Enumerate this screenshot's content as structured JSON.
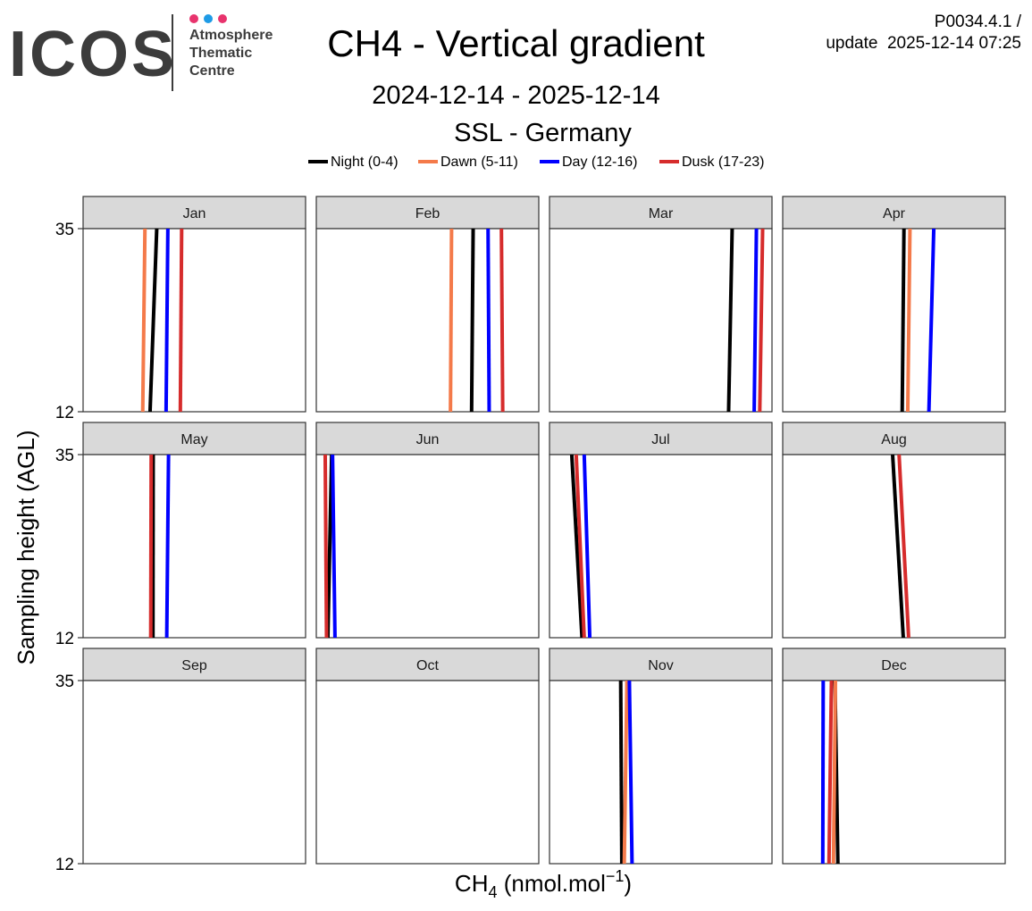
{
  "logo": {
    "wordmark": "ICOS",
    "lines": [
      "Atmosphere",
      "Thematic",
      "Centre"
    ],
    "dot_colors": [
      "#e8336d",
      "#1e9be6",
      "#e8336d"
    ]
  },
  "header": {
    "title": "CH4 - Vertical gradient",
    "date_range": "2024-12-14 - 2025-12-14",
    "station": "SSL - Germany",
    "product_code": "P0034.4.1 /",
    "update_text": "update  2025-12-14 07:25"
  },
  "chart_data": {
    "type": "line",
    "title": "CH4 - Vertical gradient",
    "xlabel": "CH4 (nmol.mol-1)",
    "xlabel_main": "CH",
    "xlabel_sub": "4",
    "xlabel_unit": " (nmol.mol",
    "xlabel_sup": "−1",
    "xlabel_close": ")",
    "ylabel": "Sampling height (AGL)",
    "y_ticks": [
      12,
      35
    ],
    "ylim": [
      12,
      35
    ],
    "x_ticks_shown": false,
    "grid": false,
    "legend_position": "top",
    "facets": [
      "Jan",
      "Feb",
      "Mar",
      "Apr",
      "May",
      "Jun",
      "Jul",
      "Aug",
      "Sep",
      "Oct",
      "Nov",
      "Dec"
    ],
    "facet_layout": {
      "rows": 3,
      "cols": 4
    },
    "series": [
      {
        "name": "Night (0-4)",
        "color": "#000000",
        "by_facet": {
          "Jan": [
            0.331,
            0.301
          ],
          "Feb": [
            0.705,
            0.698
          ],
          "Mar": [
            0.821,
            0.805
          ],
          "Apr": [
            0.545,
            0.537
          ],
          "May": [
            0.315,
            0.314
          ],
          "Jun": [
            0.069,
            0.052
          ],
          "Jul": [
            0.1,
            0.146
          ],
          "Aug": [
            0.494,
            0.542
          ],
          "Sep": null,
          "Oct": null,
          "Nov": [
            0.32,
            0.325
          ],
          "Dec": [
            0.235,
            0.248
          ]
        }
      },
      {
        "name": "Dawn (5-11)",
        "color": "#f47a4a",
        "by_facet": {
          "Jan": [
            0.278,
            0.268
          ],
          "Feb": [
            0.608,
            0.603
          ],
          "Mar": null,
          "Apr": [
            0.572,
            0.562
          ],
          "May": null,
          "Jun": null,
          "Jul": null,
          "Aug": null,
          "Sep": null,
          "Oct": null,
          "Nov": [
            0.348,
            0.336
          ],
          "Dec": [
            0.237,
            0.228
          ]
        }
      },
      {
        "name": "Day (12-16)",
        "color": "#0000ff",
        "by_facet": {
          "Jan": [
            0.381,
            0.373
          ],
          "Feb": [
            0.772,
            0.777
          ],
          "Mar": [
            0.93,
            0.92
          ],
          "Apr": [
            0.679,
            0.657
          ],
          "May": [
            0.384,
            0.376
          ],
          "Jun": [
            0.073,
            0.084
          ],
          "Jul": [
            0.156,
            0.181
          ],
          "Aug": null,
          "Sep": null,
          "Oct": null,
          "Nov": [
            0.359,
            0.371
          ],
          "Dec": [
            0.182,
            0.18
          ]
        }
      },
      {
        "name": "Dusk (17-23)",
        "color": "#d62c2c",
        "by_facet": {
          "Jan": [
            0.443,
            0.437
          ],
          "Feb": [
            0.832,
            0.838
          ],
          "Mar": [
            0.958,
            0.945
          ],
          "Apr": null,
          "May": [
            0.306,
            0.304
          ],
          "Jun": [
            0.04,
            0.046
          ],
          "Jul": [
            0.12,
            0.156
          ],
          "Aug": [
            0.523,
            0.566
          ],
          "Sep": null,
          "Oct": null,
          "Nov": null,
          "Dec": [
            0.219,
            0.208
          ]
        }
      }
    ],
    "x_scale_note": "x values are relative positions across each facet panel (no x tick labels printed)"
  }
}
